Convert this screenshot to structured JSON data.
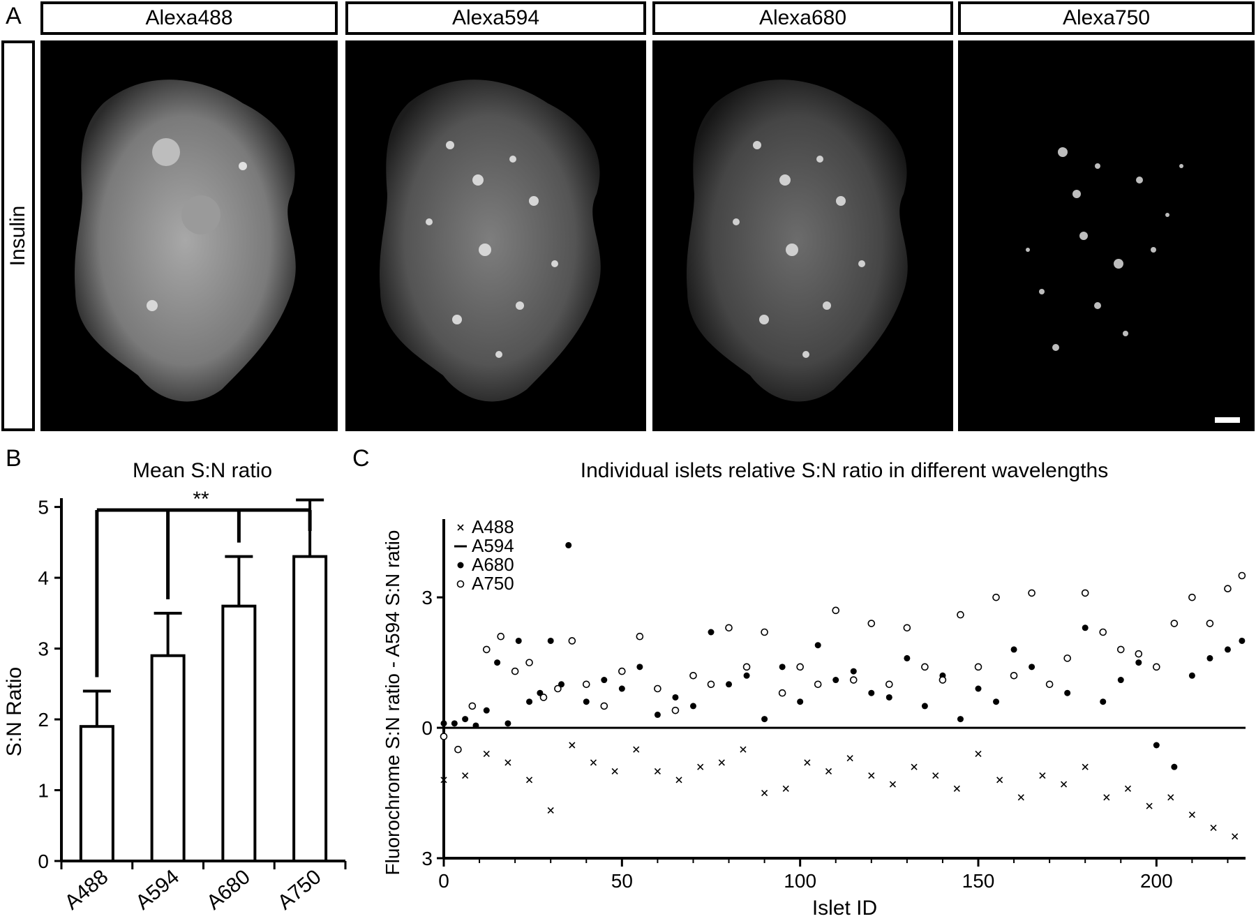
{
  "panelA": {
    "letter": "A",
    "row_label": "Insulin",
    "columns": [
      "Alexa488",
      "Alexa594",
      "Alexa680",
      "Alexa750"
    ]
  },
  "panelB": {
    "letter": "B",
    "significance": "**"
  },
  "panelC": {
    "letter": "C"
  },
  "chart_data": [
    {
      "type": "bar",
      "title": "Mean S:N ratio",
      "categories": [
        "A488",
        "A594",
        "A680",
        "A750"
      ],
      "values": [
        1.9,
        2.9,
        3.6,
        4.3
      ],
      "errors": [
        0.5,
        0.6,
        0.7,
        0.8
      ],
      "ylabel": "S:N Ratio",
      "ylim": [
        0,
        5.4
      ],
      "yticks": [
        0,
        1,
        2,
        3,
        4,
        5
      ],
      "significance_label": "**",
      "comparisons": [
        [
          "A488",
          "A594"
        ],
        [
          "A488",
          "A680"
        ],
        [
          "A488",
          "A750"
        ]
      ]
    },
    {
      "type": "scatter",
      "title": "Individual islets relative S:N ratio in different wavelengths",
      "xlabel": "Islet ID",
      "ylabel": "Fluorochrome S:N ratio - A594 S:N ratio",
      "xlim": [
        0,
        225
      ],
      "ylim": [
        -3,
        4.8
      ],
      "xticks": [
        0,
        50,
        100,
        150,
        200
      ],
      "yticks": [
        {
          "value": -3,
          "label": "3"
        },
        {
          "value": 0,
          "label": "0"
        },
        {
          "value": 3,
          "label": "3"
        }
      ],
      "legend": [
        "A488",
        "A594",
        "A680",
        "A750"
      ],
      "legend_markers": [
        "x",
        "dash",
        "filled-circle",
        "open-circle"
      ],
      "legend_position": "top-left",
      "series": [
        {
          "name": "A488",
          "marker": "x",
          "x": [
            0,
            6,
            12,
            18,
            24,
            30,
            36,
            42,
            48,
            54,
            60,
            66,
            72,
            78,
            84,
            90,
            96,
            102,
            108,
            114,
            120,
            126,
            132,
            138,
            144,
            150,
            156,
            162,
            168,
            174,
            180,
            186,
            192,
            198,
            204,
            210,
            216,
            222
          ],
          "y": [
            -1.2,
            -1.1,
            -0.6,
            -0.8,
            -1.2,
            -1.9,
            -0.4,
            -0.8,
            -1.0,
            -0.5,
            -1.0,
            -1.2,
            -0.9,
            -0.8,
            -0.5,
            -1.5,
            -1.4,
            -0.8,
            -1.0,
            -0.7,
            -1.1,
            -1.3,
            -0.9,
            -1.1,
            -1.4,
            -0.6,
            -1.2,
            -1.6,
            -1.1,
            -1.3,
            -0.9,
            -1.6,
            -1.4,
            -1.8,
            -1.6,
            -2.0,
            -2.3,
            -2.5
          ]
        },
        {
          "name": "A594",
          "marker": "dash",
          "x": [
            0,
            225
          ],
          "y": [
            0,
            0
          ]
        },
        {
          "name": "A680",
          "marker": "filled-circle",
          "x": [
            0,
            3,
            6,
            9,
            12,
            15,
            18,
            21,
            24,
            27,
            30,
            33,
            35,
            40,
            45,
            50,
            55,
            60,
            65,
            70,
            75,
            80,
            85,
            90,
            95,
            100,
            105,
            110,
            115,
            120,
            125,
            130,
            135,
            140,
            145,
            150,
            155,
            160,
            165,
            170,
            175,
            180,
            185,
            190,
            195,
            200,
            205,
            210,
            215,
            220,
            224
          ],
          "y": [
            0.1,
            0.1,
            0.2,
            0.05,
            0.4,
            1.5,
            0.1,
            2.0,
            0.6,
            0.8,
            2.0,
            1.0,
            4.2,
            0.6,
            1.1,
            0.9,
            1.4,
            0.3,
            0.7,
            0.5,
            2.2,
            1.0,
            1.2,
            0.2,
            1.4,
            0.6,
            1.9,
            1.1,
            1.3,
            0.8,
            0.7,
            1.6,
            0.5,
            1.2,
            0.2,
            0.9,
            0.6,
            1.8,
            1.4,
            1.0,
            0.8,
            2.3,
            0.6,
            1.1,
            1.5,
            -0.4,
            -0.9,
            1.2,
            1.6,
            1.8,
            2.0
          ]
        },
        {
          "name": "A750",
          "marker": "open-circle",
          "x": [
            0,
            4,
            8,
            12,
            16,
            20,
            24,
            28,
            32,
            36,
            40,
            45,
            50,
            55,
            60,
            65,
            70,
            75,
            80,
            85,
            90,
            95,
            100,
            105,
            110,
            115,
            120,
            125,
            130,
            135,
            140,
            145,
            150,
            155,
            160,
            165,
            170,
            175,
            180,
            185,
            190,
            195,
            200,
            205,
            210,
            215,
            220,
            224
          ],
          "y": [
            -0.2,
            -0.5,
            0.5,
            1.8,
            2.1,
            1.3,
            1.5,
            0.7,
            0.9,
            2.0,
            1.0,
            0.5,
            1.3,
            2.1,
            0.9,
            0.4,
            1.2,
            1.0,
            2.3,
            1.4,
            2.2,
            0.8,
            1.4,
            1.0,
            2.7,
            1.1,
            2.4,
            1.0,
            2.3,
            1.4,
            1.1,
            2.6,
            1.4,
            3.0,
            1.2,
            3.1,
            1.0,
            1.6,
            3.1,
            2.2,
            1.8,
            1.7,
            1.4,
            2.4,
            3.0,
            2.4,
            3.2,
            3.5
          ]
        }
      ]
    }
  ]
}
